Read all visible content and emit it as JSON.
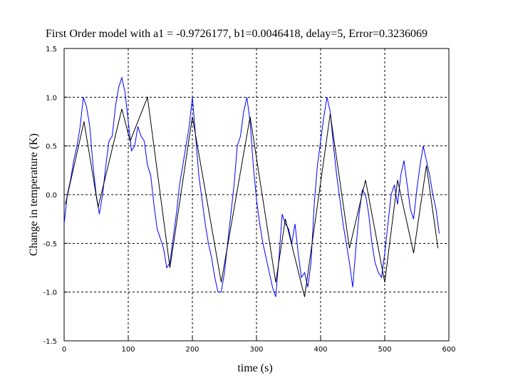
{
  "chart_data": {
    "type": "line",
    "title": "First Order model with a1 = -0.9726177, b1=0.0046418, delay=5, Error=0.3236069",
    "x_label": "time (s)",
    "y_label": "Change in temperature (K)",
    "xlim": [
      0,
      600
    ],
    "xticks": [
      0,
      100,
      200,
      300,
      400,
      500,
      600
    ],
    "ylim": [
      -1.5,
      1.5
    ],
    "yticks": [
      -1.5,
      {
        "value": -1,
        "label": "-1.0"
      },
      -0.5,
      {
        "value": 0,
        "label": "0.0"
      },
      0.5,
      {
        "value": 1,
        "label": "1.0"
      },
      1.5
    ],
    "grid": true,
    "series": [
      {
        "color": "#0000ff",
        "x": [
          0,
          5,
          10,
          15,
          20,
          25,
          30,
          35,
          40,
          45,
          50,
          55,
          60,
          65,
          70,
          75,
          80,
          85,
          90,
          95,
          100,
          105,
          110,
          115,
          120,
          125,
          130,
          135,
          140,
          145,
          150,
          155,
          160,
          165,
          170,
          175,
          180,
          185,
          190,
          195,
          200,
          205,
          210,
          215,
          220,
          225,
          230,
          235,
          240,
          245,
          250,
          255,
          260,
          265,
          270,
          275,
          280,
          285,
          290,
          295,
          300,
          305,
          310,
          315,
          320,
          325,
          330,
          335,
          340,
          345,
          350,
          355,
          360,
          365,
          370,
          375,
          380,
          385,
          390,
          395,
          400,
          405,
          410,
          415,
          420,
          425,
          430,
          435,
          440,
          445,
          450,
          455,
          460,
          465,
          470,
          475,
          480,
          485,
          490,
          495,
          500,
          505,
          510,
          515,
          520,
          525,
          530,
          535,
          540,
          545,
          550,
          555,
          560,
          565,
          570,
          575,
          580,
          585
        ],
        "values": [
          -0.3,
          0.0,
          0.15,
          0.35,
          0.5,
          0.7,
          1.0,
          0.9,
          0.7,
          0.3,
          0.0,
          -0.2,
          0.0,
          0.3,
          0.55,
          0.6,
          0.9,
          1.1,
          1.2,
          1.05,
          0.75,
          0.45,
          0.5,
          0.7,
          0.6,
          0.55,
          0.3,
          0.2,
          -0.1,
          -0.35,
          -0.45,
          -0.55,
          -0.75,
          -0.7,
          -0.45,
          -0.2,
          0.1,
          0.3,
          0.5,
          0.7,
          1.0,
          0.6,
          0.2,
          -0.05,
          -0.3,
          -0.5,
          -0.65,
          -0.85,
          -1.0,
          -1.0,
          -0.8,
          -0.5,
          -0.2,
          0.1,
          0.5,
          0.6,
          0.85,
          1.0,
          0.75,
          0.3,
          -0.05,
          -0.3,
          -0.5,
          -0.65,
          -0.8,
          -0.95,
          -1.05,
          -0.65,
          -0.2,
          -0.3,
          -0.35,
          -0.5,
          -0.3,
          -0.6,
          -0.85,
          -0.8,
          -0.95,
          -0.7,
          -0.1,
          0.3,
          0.55,
          0.8,
          1.0,
          0.85,
          0.5,
          0.2,
          -0.05,
          -0.3,
          -0.5,
          -0.7,
          -0.95,
          -0.55,
          -0.2,
          0.05,
          0.0,
          -0.2,
          -0.5,
          -0.7,
          -0.8,
          -0.85,
          -0.6,
          -0.3,
          0.0,
          0.1,
          -0.1,
          0.2,
          0.35,
          0.1,
          -0.15,
          -0.25,
          0.05,
          0.3,
          0.5,
          0.35,
          0.2,
          0.0,
          -0.15,
          -0.4
        ]
      },
      {
        "color": "#000000",
        "x": [
          2,
          31,
          53,
          90,
          103,
          130,
          165,
          200,
          245,
          290,
          330,
          345,
          375,
          415,
          445,
          470,
          500,
          520,
          545,
          565,
          583
        ],
        "values": [
          -0.1,
          0.75,
          -0.13,
          0.88,
          0.55,
          1.0,
          -0.75,
          0.8,
          -0.9,
          0.8,
          -0.9,
          -0.25,
          -1.05,
          0.83,
          -0.55,
          0.15,
          -0.9,
          0.15,
          -0.6,
          0.3,
          -0.55
        ]
      }
    ]
  }
}
